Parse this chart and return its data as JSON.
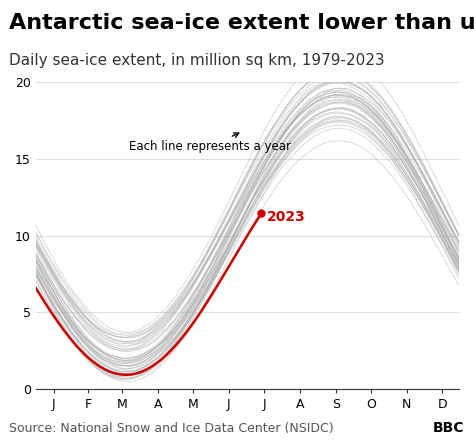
{
  "title": "Antarctic sea-ice extent lower than usual",
  "subtitle": "Daily sea-ice extent, in million sq km, 1979-2023",
  "source": "Source: National Snow and Ice Data Center (NSIDC)",
  "bbc_logo": "BBC",
  "x_labels": [
    "J",
    "F",
    "M",
    "A",
    "M",
    "J",
    "J",
    "A",
    "S",
    "O",
    "N",
    "D"
  ],
  "y_ticks": [
    0,
    5,
    10,
    15,
    20
  ],
  "ylim": [
    0,
    20
  ],
  "annotation_text": "Each line represents a year",
  "annotation_2023": "2023",
  "gray_color": "#aaaaaa",
  "red_color": "#cc0000",
  "background_color": "#ffffff",
  "title_fontsize": 16,
  "subtitle_fontsize": 11,
  "source_fontsize": 9,
  "n_years": 43,
  "seed": 42
}
